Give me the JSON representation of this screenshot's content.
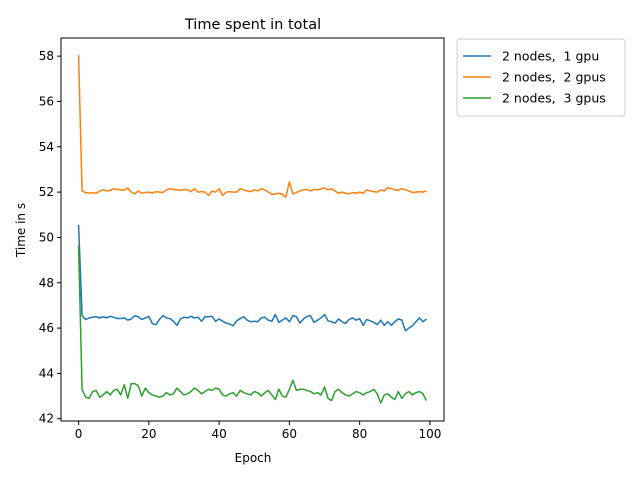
{
  "chart_data": {
    "type": "line",
    "title": "Time spent in total",
    "xlabel": "Epoch",
    "ylabel": "Time in s",
    "xlim": [
      -5,
      104
    ],
    "ylim": [
      41.9,
      58.8
    ],
    "xticks": [
      0,
      20,
      40,
      60,
      80,
      100
    ],
    "yticks": [
      42,
      44,
      46,
      48,
      50,
      52,
      54,
      56,
      58
    ],
    "grid": false,
    "legend": "outside-upper-right",
    "series": [
      {
        "name": "2 nodes,  1 gpu",
        "color": "#1f77b4",
        "values": [
          50.55,
          46.55,
          46.38,
          46.45,
          46.48,
          46.5,
          46.45,
          46.5,
          46.45,
          46.52,
          46.48,
          46.42,
          46.42,
          46.45,
          46.35,
          46.4,
          46.55,
          46.5,
          46.38,
          46.45,
          46.52,
          46.2,
          46.15,
          46.38,
          46.55,
          46.45,
          46.42,
          46.3,
          46.12,
          46.4,
          46.48,
          46.45,
          46.52,
          46.45,
          46.48,
          46.3,
          46.5,
          46.5,
          46.52,
          46.3,
          46.4,
          46.3,
          46.22,
          46.18,
          46.1,
          46.32,
          46.42,
          46.5,
          46.35,
          46.28,
          46.3,
          46.28,
          46.45,
          46.48,
          46.35,
          46.3,
          46.6,
          46.25,
          46.35,
          46.45,
          46.28,
          46.55,
          46.5,
          46.22,
          46.4,
          46.52,
          46.55,
          46.25,
          46.35,
          46.45,
          46.6,
          46.32,
          46.28,
          46.22,
          46.4,
          46.28,
          46.2,
          46.38,
          46.45,
          46.35,
          46.42,
          46.12,
          46.38,
          46.32,
          46.25,
          46.15,
          46.35,
          46.12,
          46.28,
          46.12,
          46.28,
          46.4,
          46.35,
          45.88,
          46.0,
          46.1,
          46.28,
          46.45,
          46.28,
          46.4
        ]
      },
      {
        "name": "2 nodes,  2 gpus",
        "color": "#ff7f0e",
        "values": [
          58.05,
          52.05,
          51.98,
          51.95,
          51.98,
          51.95,
          52.05,
          52.1,
          52.05,
          52.08,
          52.15,
          52.12,
          52.1,
          52.08,
          52.18,
          52.0,
          51.92,
          52.05,
          51.95,
          51.98,
          52.0,
          51.95,
          52.02,
          52.0,
          51.98,
          52.1,
          52.15,
          52.12,
          52.1,
          52.08,
          52.12,
          52.1,
          52.02,
          52.15,
          52.0,
          52.02,
          52.0,
          51.85,
          52.05,
          52.0,
          52.15,
          51.85,
          52.0,
          52.02,
          52.0,
          52.0,
          52.15,
          52.1,
          52.05,
          52.02,
          52.1,
          52.05,
          52.15,
          52.1,
          52.0,
          51.9,
          51.92,
          51.95,
          51.9,
          51.78,
          52.45,
          51.92,
          51.98,
          52.05,
          52.1,
          52.12,
          52.05,
          52.12,
          52.1,
          52.15,
          52.18,
          52.1,
          52.15,
          52.05,
          51.95,
          52.0,
          51.95,
          51.92,
          51.98,
          51.95,
          52.0,
          51.95,
          52.1,
          52.05,
          52.02,
          52.0,
          52.1,
          52.05,
          52.2,
          52.15,
          52.1,
          52.08,
          52.15,
          52.1,
          52.05,
          51.98,
          52.0,
          52.02,
          52.0,
          52.05
        ]
      },
      {
        "name": "2 nodes,  3 gpus",
        "color": "#2ca02c",
        "values": [
          49.65,
          43.3,
          42.95,
          42.9,
          43.2,
          43.25,
          42.95,
          43.05,
          43.2,
          43.05,
          43.25,
          43.3,
          43.05,
          43.5,
          42.9,
          43.55,
          43.55,
          43.45,
          43.0,
          43.35,
          43.15,
          43.05,
          43.0,
          42.95,
          43.0,
          43.15,
          43.05,
          43.1,
          43.35,
          43.2,
          43.05,
          43.1,
          43.2,
          43.35,
          43.25,
          43.1,
          43.2,
          43.3,
          43.25,
          43.35,
          43.3,
          43.05,
          43.0,
          43.1,
          43.15,
          43.0,
          43.25,
          43.15,
          43.1,
          43.05,
          43.2,
          43.15,
          43.0,
          43.15,
          43.25,
          43.05,
          42.85,
          43.3,
          43.0,
          42.95,
          43.3,
          43.7,
          43.25,
          43.3,
          43.3,
          43.25,
          43.2,
          43.1,
          43.15,
          43.05,
          43.4,
          42.9,
          42.8,
          43.2,
          43.3,
          43.15,
          43.05,
          43.0,
          43.1,
          43.2,
          43.15,
          43.05,
          43.15,
          43.2,
          43.3,
          43.1,
          42.7,
          43.05,
          43.1,
          42.95,
          42.85,
          43.2,
          42.9,
          43.1,
          43.2,
          43.05,
          43.15,
          43.2,
          43.1,
          42.8
        ]
      }
    ]
  }
}
